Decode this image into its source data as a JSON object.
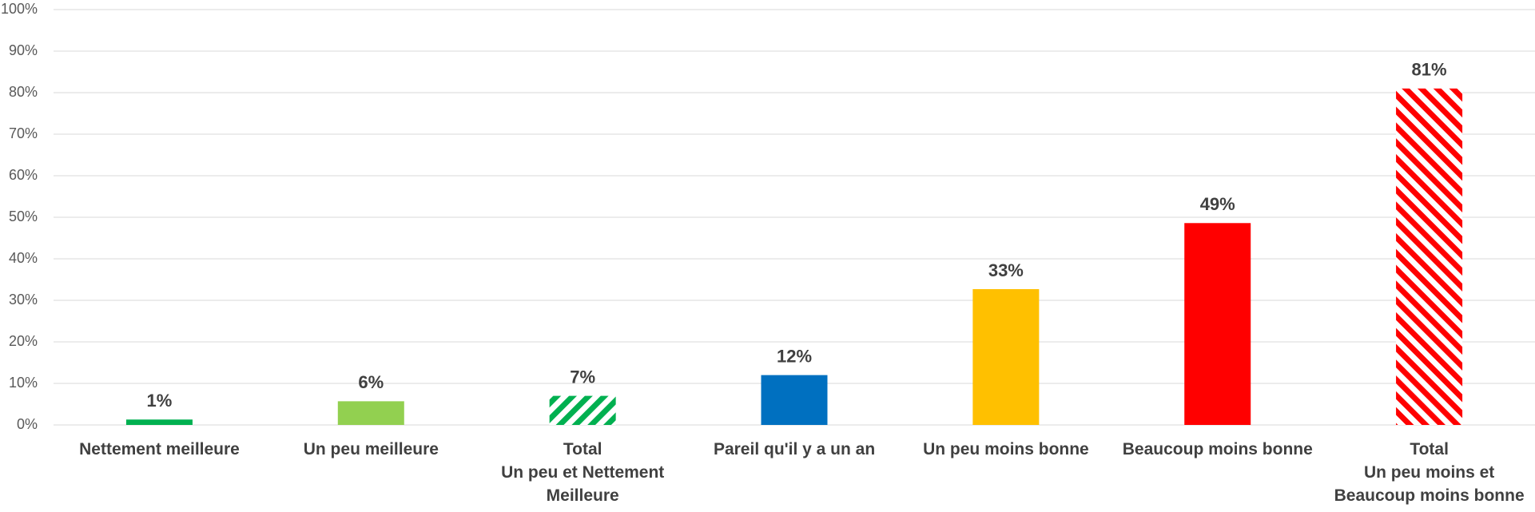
{
  "chart_data": {
    "type": "bar",
    "categories": [
      "Nettement meilleure",
      "Un peu meilleure",
      "Total\nUn peu et Nettement\nMeilleure",
      "Pareil qu'il y a un an",
      "Un peu moins bonne",
      "Beaucoup moins bonne",
      "Total\nUn peu moins et\nBeaucoup moins bonne"
    ],
    "values": [
      1.3,
      5.7,
      7,
      12,
      32.7,
      48.6,
      81
    ],
    "value_labels": [
      "1%",
      "6%",
      "7%",
      "12%",
      "33%",
      "49%",
      "81%"
    ],
    "colors": [
      "#00b050",
      "#92d050",
      "#00b050",
      "#0070c0",
      "#ffc000",
      "#ff0000",
      "#ff0000"
    ],
    "hatched": [
      false,
      false,
      true,
      false,
      false,
      false,
      true
    ],
    "ylim": [
      0,
      100
    ],
    "yticks": [
      {
        "value": 0,
        "label": "0%"
      },
      {
        "value": 10,
        "label": "10%"
      },
      {
        "value": 20,
        "label": "20%"
      },
      {
        "value": 30,
        "label": "30%"
      },
      {
        "value": 40,
        "label": "40%"
      },
      {
        "value": 50,
        "label": "50%"
      },
      {
        "value": 60,
        "label": "60%"
      },
      {
        "value": 70,
        "label": "70%"
      },
      {
        "value": 80,
        "label": "80%"
      },
      {
        "value": 90,
        "label": "90%"
      },
      {
        "value": 100,
        "label": "100%"
      }
    ],
    "grid": true
  }
}
